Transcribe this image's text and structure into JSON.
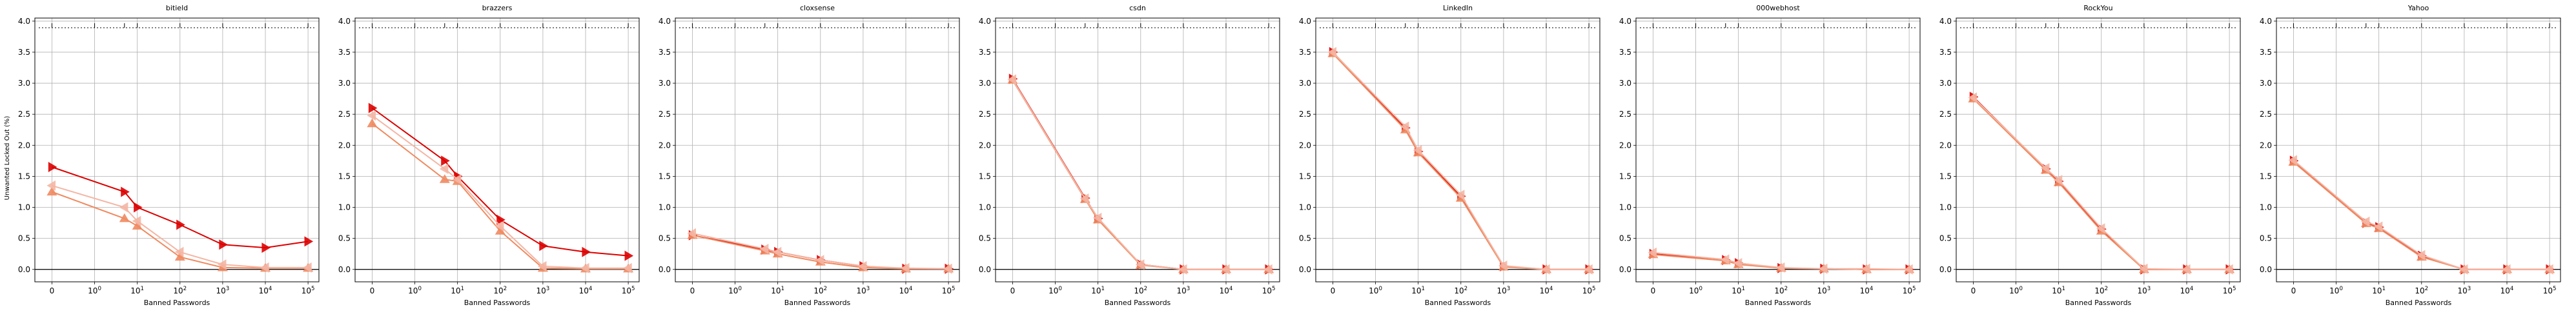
{
  "figure": {
    "ylabel": "Unwanted Locked Out (%)",
    "xlabel": "Banned Passwords"
  },
  "chart_data": [
    {
      "type": "line",
      "title": "bitield",
      "xlabel": "Banned Passwords",
      "ylabel": "Unwanted Locked Out (%)",
      "xscale": "symlog",
      "xlim": [
        -0.4,
        180000
      ],
      "ylim": [
        -0.2,
        4.05
      ],
      "x_tick_labels": [
        "0",
        "10^0",
        "10^1",
        "10^2",
        "10^3",
        "10^4",
        "10^5"
      ],
      "y_tick_labels": [
        "0.0",
        "0.5",
        "1.0",
        "1.5",
        "2.0",
        "2.5",
        "3.0",
        "3.5",
        "4.0"
      ],
      "grid": true,
      "series": [
        {
          "color": "#dd0000",
          "marker": "triangle-right",
          "x": [
            0,
            5,
            10,
            100,
            1000,
            10000,
            100000
          ],
          "y": [
            1.65,
            1.25,
            1.0,
            0.72,
            0.4,
            0.35,
            0.45
          ]
        },
        {
          "color": "#f08a60",
          "marker": "triangle-up",
          "x": [
            0,
            5,
            10,
            100,
            1000,
            10000,
            100000
          ],
          "y": [
            1.25,
            0.82,
            0.7,
            0.2,
            0.03,
            0.02,
            0.02
          ]
        },
        {
          "color": "#f4b6a4",
          "marker": "triangle-left",
          "x": [
            0,
            5,
            10,
            100,
            1000,
            10000,
            100000
          ],
          "y": [
            1.35,
            1.0,
            0.78,
            0.28,
            0.08,
            0.03,
            0.03
          ]
        }
      ]
    },
    {
      "type": "line",
      "title": "brazzers",
      "xlabel": "Banned Passwords",
      "xscale": "symlog",
      "xlim": [
        -0.4,
        180000
      ],
      "ylim": [
        -0.2,
        4.05
      ],
      "x_tick_labels": [
        "0",
        "10^0",
        "10^1",
        "10^2",
        "10^3",
        "10^4",
        "10^5"
      ],
      "y_tick_labels": [
        "0.0",
        "0.5",
        "1.0",
        "1.5",
        "2.0",
        "2.5",
        "3.0",
        "3.5",
        "4.0"
      ],
      "grid": true,
      "series": [
        {
          "color": "#dd0000",
          "marker": "triangle-right",
          "x": [
            0,
            5,
            10,
            100,
            1000,
            10000,
            100000
          ],
          "y": [
            2.6,
            1.75,
            1.5,
            0.8,
            0.38,
            0.28,
            0.22
          ]
        },
        {
          "color": "#f08a60",
          "marker": "triangle-up",
          "x": [
            0,
            5,
            10,
            100,
            1000,
            10000,
            100000
          ],
          "y": [
            2.35,
            1.45,
            1.42,
            0.62,
            0.02,
            0.01,
            0.01
          ]
        },
        {
          "color": "#f4b6a4",
          "marker": "triangle-left",
          "x": [
            0,
            5,
            10,
            100,
            1000,
            10000,
            100000
          ],
          "y": [
            2.48,
            1.62,
            1.45,
            0.7,
            0.05,
            0.02,
            0.02
          ]
        }
      ]
    },
    {
      "type": "line",
      "title": "cloxsense",
      "xlabel": "Banned Passwords",
      "xscale": "symlog",
      "xlim": [
        -0.4,
        180000
      ],
      "ylim": [
        -0.2,
        4.05
      ],
      "x_tick_labels": [
        "0",
        "10^0",
        "10^1",
        "10^2",
        "10^3",
        "10^4",
        "10^5"
      ],
      "y_tick_labels": [
        "0.0",
        "0.5",
        "1.0",
        "1.5",
        "2.0",
        "2.5",
        "3.0",
        "3.5",
        "4.0"
      ],
      "grid": true,
      "series": [
        {
          "color": "#dd0000",
          "marker": "triangle-right",
          "x": [
            0,
            5,
            10,
            100,
            1000,
            10000,
            100000
          ],
          "y": [
            0.55,
            0.32,
            0.28,
            0.15,
            0.05,
            0.01,
            0.01
          ]
        },
        {
          "color": "#f08a60",
          "marker": "triangle-up",
          "x": [
            0,
            5,
            10,
            100,
            1000,
            10000,
            100000
          ],
          "y": [
            0.55,
            0.3,
            0.25,
            0.12,
            0.03,
            0.01,
            0.01
          ]
        },
        {
          "color": "#f4b6a4",
          "marker": "triangle-left",
          "x": [
            0,
            5,
            10,
            100,
            1000,
            10000,
            100000
          ],
          "y": [
            0.58,
            0.33,
            0.28,
            0.15,
            0.05,
            0.02,
            0.01
          ]
        }
      ]
    },
    {
      "type": "line",
      "title": "csdn",
      "xlabel": "Banned Passwords",
      "xscale": "symlog",
      "xlim": [
        -0.4,
        180000
      ],
      "ylim": [
        -0.2,
        4.05
      ],
      "x_tick_labels": [
        "0",
        "10^0",
        "10^1",
        "10^2",
        "10^3",
        "10^4",
        "10^5"
      ],
      "y_tick_labels": [
        "0.0",
        "0.5",
        "1.0",
        "1.5",
        "2.0",
        "2.5",
        "3.0",
        "3.5",
        "4.0"
      ],
      "grid": true,
      "series": [
        {
          "color": "#dd0000",
          "marker": "triangle-right",
          "x": [
            0,
            5,
            10,
            100,
            1000,
            10000,
            100000
          ],
          "y": [
            3.07,
            1.15,
            0.82,
            0.08,
            0.0,
            0.0,
            0.0
          ]
        },
        {
          "color": "#f08a60",
          "marker": "triangle-up",
          "x": [
            0,
            5,
            10,
            100,
            1000,
            10000,
            100000
          ],
          "y": [
            3.05,
            1.13,
            0.8,
            0.07,
            0.0,
            0.0,
            0.0
          ]
        },
        {
          "color": "#f4b6a4",
          "marker": "triangle-left",
          "x": [
            0,
            5,
            10,
            100,
            1000,
            10000,
            100000
          ],
          "y": [
            3.06,
            1.14,
            0.83,
            0.08,
            0.0,
            0.0,
            0.0
          ]
        }
      ]
    },
    {
      "type": "line",
      "title": "LinkedIn",
      "xlabel": "Banned Passwords",
      "xscale": "symlog",
      "xlim": [
        -0.4,
        180000
      ],
      "ylim": [
        -0.2,
        4.05
      ],
      "x_tick_labels": [
        "0",
        "10^0",
        "10^1",
        "10^2",
        "10^3",
        "10^4",
        "10^5"
      ],
      "y_tick_labels": [
        "0.0",
        "0.5",
        "1.0",
        "1.5",
        "2.0",
        "2.5",
        "3.0",
        "3.5",
        "4.0"
      ],
      "grid": true,
      "series": [
        {
          "color": "#dd0000",
          "marker": "triangle-right",
          "x": [
            0,
            5,
            10,
            100,
            1000,
            10000,
            100000
          ],
          "y": [
            3.5,
            2.28,
            1.9,
            1.18,
            0.05,
            0.0,
            0.0
          ]
        },
        {
          "color": "#f08a60",
          "marker": "triangle-up",
          "x": [
            0,
            5,
            10,
            100,
            1000,
            10000,
            100000
          ],
          "y": [
            3.48,
            2.25,
            1.88,
            1.15,
            0.04,
            0.0,
            0.0
          ]
        },
        {
          "color": "#f4b6a4",
          "marker": "triangle-left",
          "x": [
            0,
            5,
            10,
            100,
            1000,
            10000,
            100000
          ],
          "y": [
            3.5,
            2.3,
            1.92,
            1.2,
            0.06,
            0.0,
            0.0
          ]
        }
      ]
    },
    {
      "type": "line",
      "title": "000webhost",
      "xlabel": "Banned Passwords",
      "xscale": "symlog",
      "xlim": [
        -0.4,
        180000
      ],
      "ylim": [
        -0.2,
        4.05
      ],
      "x_tick_labels": [
        "0",
        "10^0",
        "10^1",
        "10^2",
        "10^3",
        "10^4",
        "10^5"
      ],
      "y_tick_labels": [
        "0.0",
        "0.5",
        "1.0",
        "1.5",
        "2.0",
        "2.5",
        "3.0",
        "3.5",
        "4.0"
      ],
      "grid": true,
      "series": [
        {
          "color": "#dd0000",
          "marker": "triangle-right",
          "x": [
            0,
            5,
            10,
            100,
            1000,
            10000,
            100000
          ],
          "y": [
            0.25,
            0.15,
            0.1,
            0.02,
            0.01,
            0.0,
            0.0
          ]
        },
        {
          "color": "#f08a60",
          "marker": "triangle-up",
          "x": [
            0,
            5,
            10,
            100,
            1000,
            10000,
            100000
          ],
          "y": [
            0.24,
            0.14,
            0.08,
            0.02,
            0.01,
            0.0,
            0.0
          ]
        },
        {
          "color": "#f4b6a4",
          "marker": "triangle-left",
          "x": [
            0,
            5,
            10,
            100,
            1000,
            10000,
            100000
          ],
          "y": [
            0.27,
            0.16,
            0.1,
            0.03,
            0.01,
            0.01,
            0.0
          ]
        }
      ]
    },
    {
      "type": "line",
      "title": "RockYou",
      "xlabel": "Banned Passwords",
      "xscale": "symlog",
      "xlim": [
        -0.4,
        180000
      ],
      "ylim": [
        -0.2,
        4.05
      ],
      "x_tick_labels": [
        "0",
        "10^0",
        "10^1",
        "10^2",
        "10^3",
        "10^4",
        "10^5"
      ],
      "y_tick_labels": [
        "0.0",
        "0.5",
        "1.0",
        "1.5",
        "2.0",
        "2.5",
        "3.0",
        "3.5",
        "4.0"
      ],
      "grid": true,
      "series": [
        {
          "color": "#dd0000",
          "marker": "triangle-right",
          "x": [
            0,
            5,
            10,
            100,
            1000,
            10000,
            100000
          ],
          "y": [
            2.78,
            1.62,
            1.42,
            0.65,
            0.0,
            0.0,
            0.0
          ]
        },
        {
          "color": "#f08a60",
          "marker": "triangle-up",
          "x": [
            0,
            5,
            10,
            100,
            1000,
            10000,
            100000
          ],
          "y": [
            2.75,
            1.6,
            1.4,
            0.62,
            0.0,
            0.0,
            0.0
          ]
        },
        {
          "color": "#f4b6a4",
          "marker": "triangle-left",
          "x": [
            0,
            5,
            10,
            100,
            1000,
            10000,
            100000
          ],
          "y": [
            2.77,
            1.63,
            1.44,
            0.66,
            0.01,
            0.0,
            0.0
          ]
        }
      ]
    },
    {
      "type": "line",
      "title": "Yahoo",
      "xlabel": "Banned Passwords",
      "xscale": "symlog",
      "xlim": [
        -0.4,
        180000
      ],
      "ylim": [
        -0.2,
        4.05
      ],
      "x_tick_labels": [
        "0",
        "10^0",
        "10^1",
        "10^2",
        "10^3",
        "10^4",
        "10^5"
      ],
      "y_tick_labels": [
        "0.0",
        "0.5",
        "1.0",
        "1.5",
        "2.0",
        "2.5",
        "3.0",
        "3.5",
        "4.0"
      ],
      "grid": true,
      "series": [
        {
          "color": "#dd0000",
          "marker": "triangle-right",
          "x": [
            0,
            5,
            10,
            100,
            1000,
            10000,
            100000
          ],
          "y": [
            1.75,
            0.75,
            0.68,
            0.22,
            0.0,
            0.0,
            0.0
          ]
        },
        {
          "color": "#f08a60",
          "marker": "triangle-up",
          "x": [
            0,
            5,
            10,
            100,
            1000,
            10000,
            100000
          ],
          "y": [
            1.73,
            0.74,
            0.66,
            0.2,
            0.0,
            0.0,
            0.0
          ]
        },
        {
          "color": "#f4b6a4",
          "marker": "triangle-left",
          "x": [
            0,
            5,
            10,
            100,
            1000,
            10000,
            100000
          ],
          "y": [
            1.76,
            0.77,
            0.69,
            0.23,
            0.0,
            0.0,
            0.0
          ]
        }
      ]
    }
  ]
}
